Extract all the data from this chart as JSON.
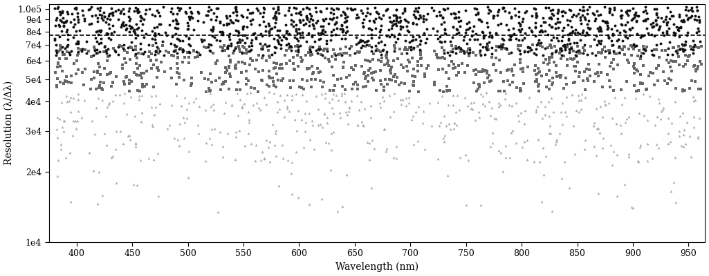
{
  "title": "",
  "xlabel": "Wavelength (nm)",
  "ylabel": "Resolution (λ/Δλ)",
  "xlim": [
    375,
    965
  ],
  "ylim": [
    10000,
    105000
  ],
  "dashed_line_y": 77000,
  "background_color": "#ffffff",
  "marker_size_circles": 8,
  "marker_size_squares": 7,
  "marker_size_triangles": 7,
  "circle_color": "#111111",
  "square_color": "#666666",
  "triangle_color": "#aaaaaa",
  "seed_circles": 101,
  "seed_squares": 202,
  "seed_triangles": 303
}
